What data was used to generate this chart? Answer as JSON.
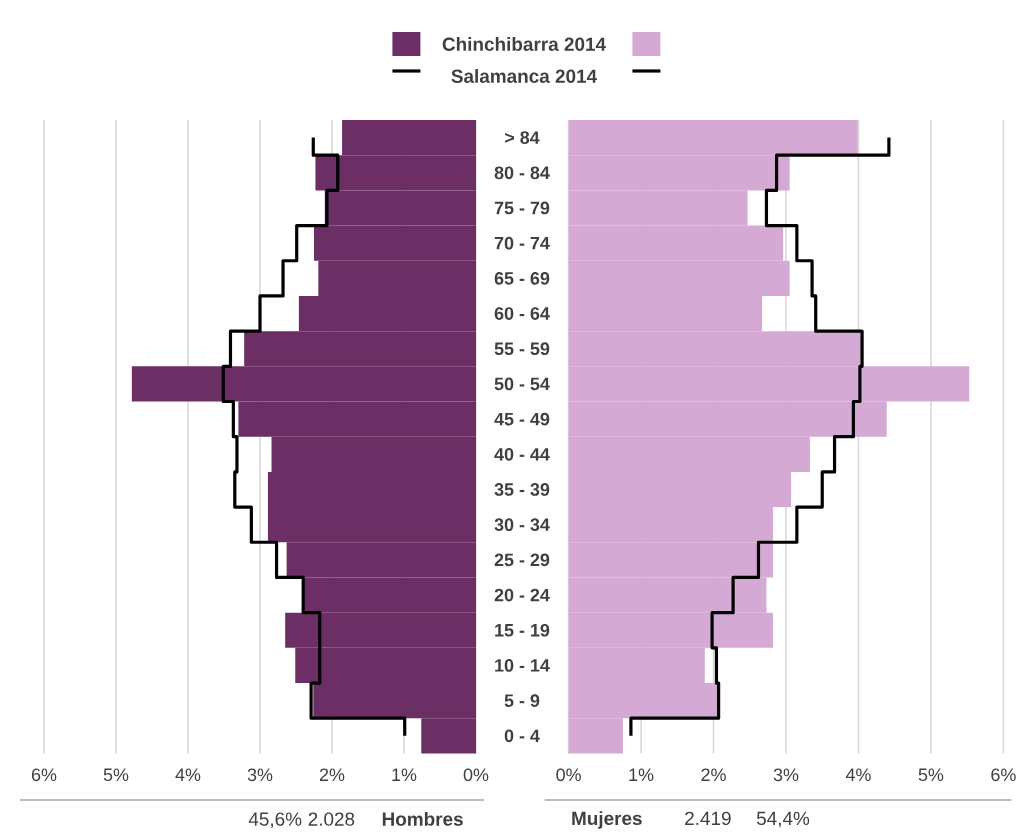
{
  "chart_data": [
    {
      "type": "bar",
      "orientation": "horizontal",
      "categories": [
        "> 84",
        "80 - 84",
        "75 - 79",
        "70 - 74",
        "65 - 69",
        "60 - 64",
        "55 - 59",
        "50 - 54",
        "45 - 49",
        "40 - 44",
        "35 - 39",
        "30 - 34",
        "25 - 29",
        "20 - 24",
        "15 - 19",
        "10 - 14",
        "5 - 9",
        "0 - 4"
      ],
      "xlim": [
        6,
        0
      ],
      "xticks": [
        {
          "value": 6,
          "label": "6%"
        },
        {
          "value": 5,
          "label": "5%"
        },
        {
          "value": 4,
          "label": "4%"
        },
        {
          "value": 3,
          "label": "3%"
        },
        {
          "value": 2,
          "label": "2%"
        },
        {
          "value": 1,
          "label": "1%"
        },
        {
          "value": 0,
          "label": "0%"
        }
      ],
      "grid": "x",
      "legend": "top",
      "xlabel": "Hombres",
      "annotations": [
        "45,6%",
        "2.028"
      ],
      "series": [
        {
          "name": "Chinchibarra 2014",
          "color": "#6b2f66",
          "values": [
            1.86,
            2.23,
            2.1,
            2.25,
            2.19,
            2.46,
            3.22,
            4.78,
            3.3,
            2.84,
            2.89,
            2.89,
            2.63,
            2.4,
            2.65,
            2.51,
            2.26,
            0.76
          ]
        },
        {
          "name": "Salamanca 2014",
          "type": "step",
          "color": "#000000",
          "values": [
            2.26,
            1.92,
            2.07,
            2.49,
            2.68,
            3.0,
            3.41,
            3.51,
            3.37,
            3.32,
            3.35,
            3.12,
            2.77,
            2.4,
            2.17,
            2.17,
            2.29,
            0.99
          ]
        }
      ]
    },
    {
      "type": "bar",
      "orientation": "horizontal",
      "xlim": [
        0,
        6
      ],
      "xticks": [
        {
          "value": 0,
          "label": "0%"
        },
        {
          "value": 1,
          "label": "1%"
        },
        {
          "value": 2,
          "label": "2%"
        },
        {
          "value": 3,
          "label": "3%"
        },
        {
          "value": 4,
          "label": "4%"
        },
        {
          "value": 5,
          "label": "5%"
        },
        {
          "value": 6,
          "label": "6%"
        }
      ],
      "grid": "x",
      "xlabel": "Mujeres",
      "annotations": [
        "2.419",
        "54,4%"
      ],
      "series": [
        {
          "color": "#d4a9d4",
          "values": [
            3.99,
            3.05,
            2.47,
            2.96,
            3.05,
            2.67,
            4.05,
            5.53,
            4.39,
            3.33,
            3.07,
            2.82,
            2.82,
            2.73,
            2.82,
            1.88,
            2.06,
            0.75
          ]
        },
        {
          "type": "step",
          "color": "#000000",
          "values": [
            4.42,
            2.87,
            2.73,
            3.15,
            3.36,
            3.41,
            4.05,
            4.02,
            3.93,
            3.67,
            3.5,
            3.15,
            2.62,
            2.27,
            1.98,
            2.04,
            2.07,
            0.86
          ]
        }
      ]
    }
  ]
}
